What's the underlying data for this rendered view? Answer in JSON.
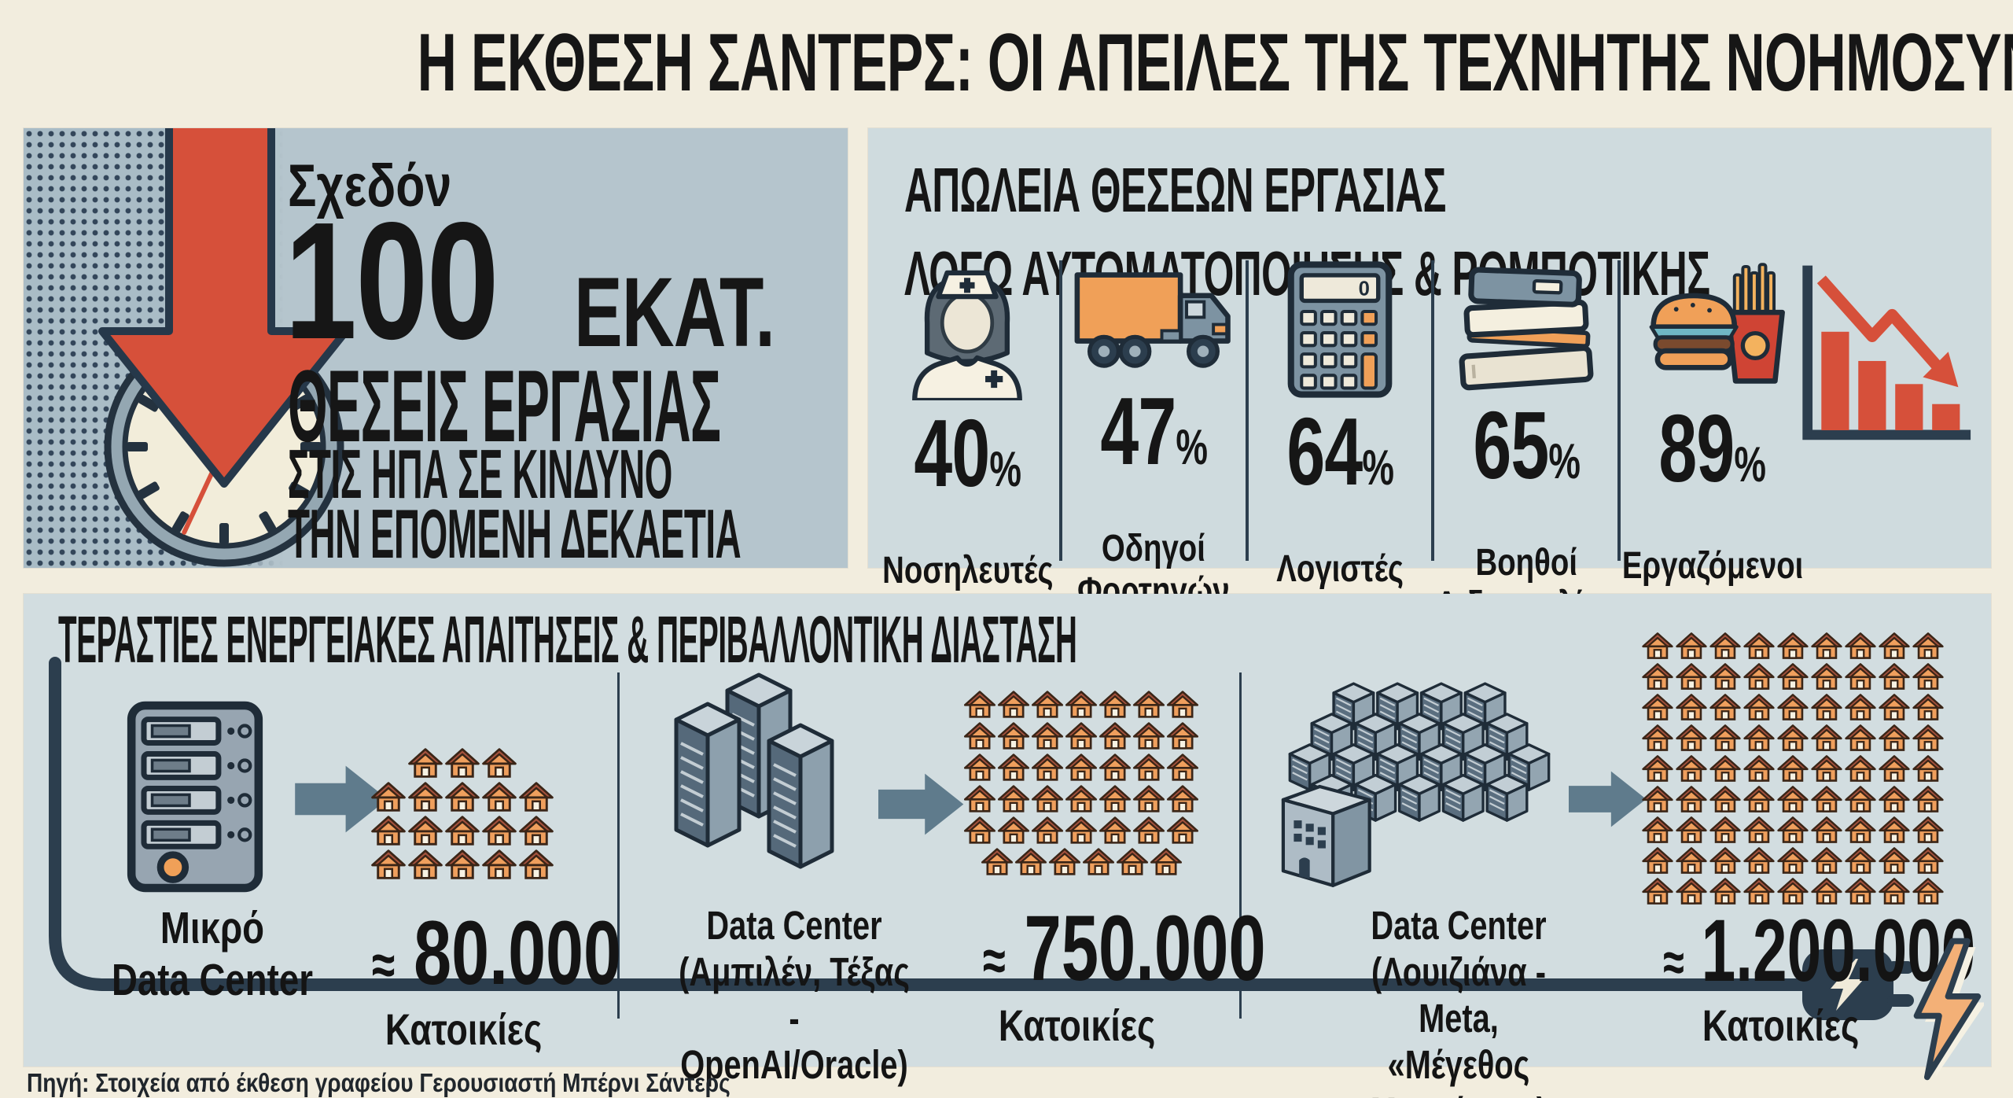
{
  "page_title": "Η ΕΚΘΕΣΗ ΣΑΝΤΕΡΣ: ΟΙ ΑΠΕΙΛΕΣ ΤΗΣ ΤΕΧΝΗΤΗΣ ΝΟΗΜΟΣΥΝΗΣ",
  "colors": {
    "background": "#f2edde",
    "panel_risk": "#b5c5cd",
    "panel_jobs": "#cfdbde",
    "panel_energy": "#d2dde0",
    "accent_red": "#d6503a",
    "accent_orange": "#f0a058",
    "slate": "#5f7b8c",
    "navy": "#2c3e4e",
    "text": "#141414"
  },
  "risk_panel": {
    "lead": "Σχεδόν",
    "big_number": "100",
    "big_number_unit": "ΕΚΑΤ.",
    "line1": "ΘΕΣΕΙΣ ΕΡΓΑΣΙΑΣ",
    "line2": "ΣΤΙΣ ΗΠΑ ΣΕ ΚΙΝΔΥΝΟ",
    "line3": "ΤΗΝ ΕΠΟΜΕΝΗ ΔΕΚΑΕΤΙΑ"
  },
  "jobs_panel": {
    "title_line1": "ΑΠΩΛΕΙΑ ΘΕΣΕΩΝ ΕΡΓΑΣΙΑΣ",
    "title_line2": "ΛΟΓΩ ΑΥΤΟΜΑΤΟΠΟΙΗΣΗΣ & ΡΟΜΠΟΤΙΚΗΣ",
    "percent_suffix": "%",
    "items": [
      {
        "icon": "nurse-icon",
        "value": "40",
        "label": "Νοσηλευτές"
      },
      {
        "icon": "truck-icon",
        "value": "47",
        "label": "Οδηγοί\nΦορτηγών"
      },
      {
        "icon": "calculator-icon",
        "value": "64",
        "label": "Λογιστές"
      },
      {
        "icon": "books-icon",
        "value": "65",
        "label": "Βοηθοί\nΔιδασκαλίας"
      },
      {
        "icon": "fastfood-icon",
        "value": "89",
        "label": "Εργαζόμενοι\nσε Ταχυφαγεία"
      }
    ]
  },
  "energy_panel": {
    "title": "ΤΕΡΑΣΤΙΕΣ ΕΝΕΡΓΕΙΑΚΕΣ ΑΠΑΙΤΗΣΕΙΣ & ΠΕΡΙΒΑΛΛΟΝΤΙΚΗ ΔΙΑΣΤΑΣΗ",
    "comparisons": [
      {
        "icon": "small-datacenter-icon",
        "label": "Μικρό\nData Center",
        "approx": "≈",
        "value": "80.000",
        "unit": "Κατοικίες",
        "house_rows": [
          3,
          5,
          5,
          5
        ]
      },
      {
        "icon": "datacenter-towers-icon",
        "label": "Data Center\n(Αμπιλέν, Τέξας -\nOpenAI/Oracle)",
        "approx": "≈",
        "value": "750.000",
        "unit": "Κατοικίες",
        "house_rows": [
          7,
          7,
          7,
          7,
          7,
          6
        ]
      },
      {
        "icon": "datacenter-complex-icon",
        "label": "Data Center\n(Λουιζιάνα - Meta,\n«Μέγεθος Μανχάταν»)",
        "approx": "≈",
        "value": "1.200.000",
        "unit": "Κατοικίες",
        "house_rows": [
          9,
          9,
          9,
          9,
          9,
          9,
          9,
          9,
          9
        ]
      }
    ]
  },
  "footer": {
    "source": "Πηγή: Στοιχεία από έκθεση γραφείου Γερουσιαστή Μπέρνι Σάντερς"
  },
  "chart_data": [
    {
      "type": "bar",
      "title": "ΑΠΩΛΕΙΑ ΘΕΣΕΩΝ ΕΡΓΑΣΙΑΣ ΛΟΓΩ ΑΥΤΟΜΑΤΟΠΟΙΗΣΗΣ & ΡΟΜΠΟΤΙΚΗΣ",
      "categories": [
        "Νοσηλευτές",
        "Οδηγοί Φορτηγών",
        "Λογιστές",
        "Βοηθοί Διδασκαλίας",
        "Εργαζόμενοι σε Ταχυφαγεία"
      ],
      "values": [
        40,
        47,
        64,
        65,
        89
      ],
      "unit": "%",
      "xlabel": "",
      "ylabel": "",
      "ylim": [
        0,
        100
      ],
      "legend": false
    },
    {
      "type": "table",
      "title": "ΤΕΡΑΣΤΙΕΣ ΕΝΕΡΓΕΙΑΚΕΣ ΑΠΑΙΤΗΣΕΙΣ & ΠΕΡΙΒΑΛΛΟΝΤΙΚΗ ΔΙΑΣΤΑΣΗ",
      "rows": [
        [
          "Μικρό Data Center",
          "≈ 80.000 Κατοικίες"
        ],
        [
          "Data Center (Αμπιλέν, Τέξας - OpenAI/Oracle)",
          "≈ 750.000 Κατοικίες"
        ],
        [
          "Data Center (Λουιζιάνα - Meta, «Μέγεθος Μανχάταν»)",
          "≈ 1.200.000 Κατοικίες"
        ]
      ]
    },
    {
      "type": "table",
      "title": "Σχεδόν 100 ΕΚΑΤ. ΘΕΣΕΙΣ ΕΡΓΑΣΙΑΣ ΣΤΙΣ ΗΠΑ ΣΕ ΚΙΝΔΥΝΟ ΤΗΝ ΕΠΟΜΕΝΗ ΔΕΚΑΕΤΙΑ",
      "rows": [
        [
          "Θέσεις εργασίας σε κίνδυνο στις ΗΠΑ την επόμενη δεκαετία",
          "100 εκατ."
        ]
      ]
    }
  ]
}
